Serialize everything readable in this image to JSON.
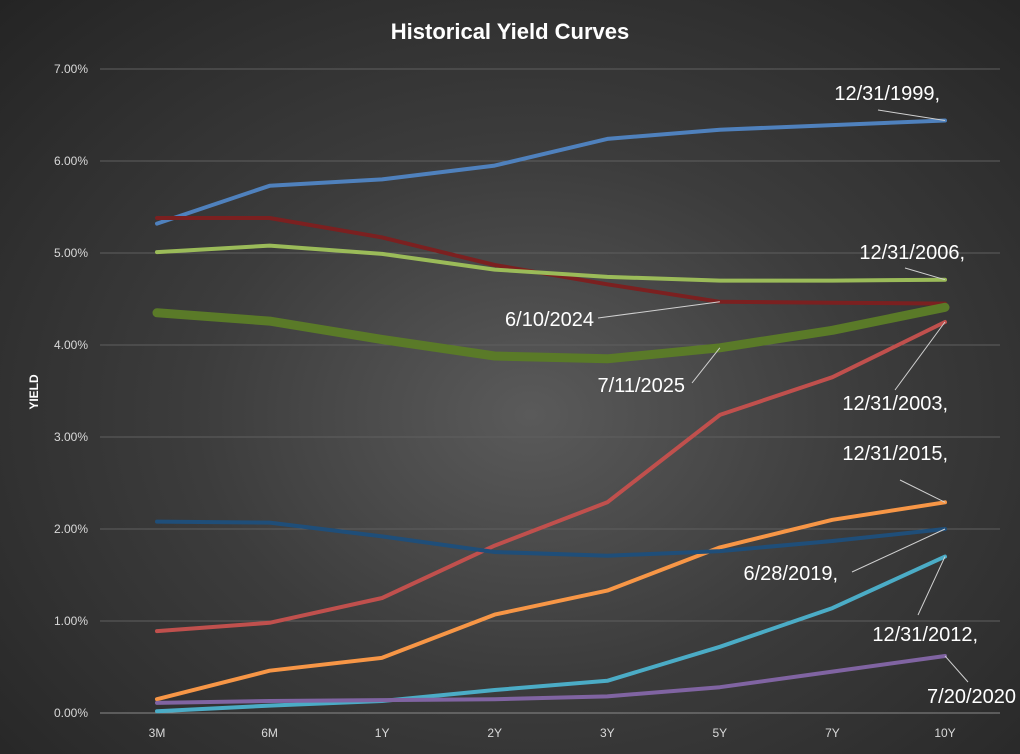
{
  "chart_data": {
    "type": "line",
    "title": "Historical Yield Curves",
    "xlabel": "",
    "ylabel": "YIELD",
    "categories": [
      "3M",
      "6M",
      "1Y",
      "2Y",
      "3Y",
      "5Y",
      "7Y",
      "10Y"
    ],
    "ylim": [
      0,
      7
    ],
    "yticks": [
      "0.00%",
      "1.00%",
      "2.00%",
      "3.00%",
      "4.00%",
      "5.00%",
      "6.00%",
      "7.00%"
    ],
    "grid": true,
    "series": [
      {
        "name": "12/31/1999,",
        "color": "#4f81bd",
        "values": [
          5.32,
          5.73,
          5.8,
          5.95,
          6.24,
          6.34,
          6.39,
          6.44
        ]
      },
      {
        "name": "6/10/2024",
        "color": "#7b2020",
        "values": [
          5.38,
          5.38,
          5.17,
          4.87,
          4.66,
          4.47,
          4.46,
          4.45
        ]
      },
      {
        "name": "12/31/2006,",
        "color": "#9bbb59",
        "values": [
          5.01,
          5.08,
          4.99,
          4.82,
          4.74,
          4.7,
          4.7,
          4.71
        ]
      },
      {
        "name": "7/11/2025",
        "color": "#5a7a28",
        "values": [
          4.35,
          4.26,
          4.06,
          3.88,
          3.85,
          3.97,
          4.16,
          4.41
        ]
      },
      {
        "name": "12/31/2003,",
        "color": "#c0504d",
        "values": [
          0.89,
          0.98,
          1.25,
          1.82,
          2.29,
          3.24,
          3.65,
          4.25
        ]
      },
      {
        "name": "12/31/2015,",
        "color": "#f79646",
        "values": [
          0.15,
          0.46,
          0.6,
          1.07,
          1.33,
          1.8,
          2.1,
          2.29
        ]
      },
      {
        "name": "6/28/2019,",
        "color": "#1f4e79",
        "values": [
          2.08,
          2.07,
          1.92,
          1.75,
          1.71,
          1.76,
          1.87,
          2.0
        ]
      },
      {
        "name": "12/31/2012,",
        "color": "#4bacc6",
        "values": [
          0.02,
          0.08,
          0.13,
          0.25,
          0.35,
          0.72,
          1.14,
          1.7
        ]
      },
      {
        "name": "7/20/2020",
        "color": "#8064a2",
        "values": [
          0.11,
          0.13,
          0.14,
          0.15,
          0.18,
          0.28,
          0.45,
          0.62
        ]
      }
    ],
    "annotations": [
      {
        "text": "12/31/1999,",
        "series": 0,
        "point": 7
      },
      {
        "text": "6/10/2024",
        "series": 1,
        "point": 5
      },
      {
        "text": "12/31/2006,",
        "series": 2,
        "point": 7
      },
      {
        "text": "7/11/2025",
        "series": 3,
        "point": 5
      },
      {
        "text": "12/31/2003,",
        "series": 4,
        "point": 7
      },
      {
        "text": "12/31/2015,",
        "series": 5,
        "point": 7
      },
      {
        "text": "6/28/2019,",
        "series": 6,
        "point": 7
      },
      {
        "text": "12/31/2012,",
        "series": 7,
        "point": 7
      },
      {
        "text": "7/20/2020",
        "series": 8,
        "point": 7
      }
    ]
  }
}
